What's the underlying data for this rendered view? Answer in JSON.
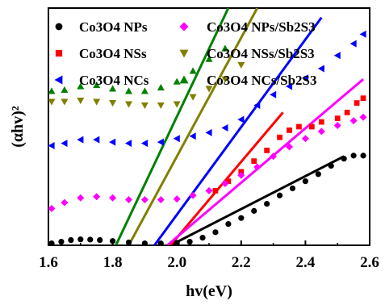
{
  "chart_data": {
    "type": "scatter",
    "xlabel": "hv(eV)",
    "ylabel": "(αhv)²",
    "xlim": [
      1.6,
      2.6
    ],
    "ylim": [
      0,
      10
    ],
    "xticks": [
      "1.6",
      "1.8",
      "2.0",
      "2.2",
      "2.4",
      "2.6"
    ],
    "legend_position": "top",
    "series": [
      {
        "name": "Co3O4 NPs",
        "color": "#000000",
        "marker": "circle",
        "points": [
          [
            1.61,
            0.08
          ],
          [
            1.64,
            0.15
          ],
          [
            1.67,
            0.22
          ],
          [
            1.7,
            0.25
          ],
          [
            1.73,
            0.24
          ],
          [
            1.76,
            0.22
          ],
          [
            1.8,
            0.18
          ],
          [
            1.85,
            0.12
          ],
          [
            1.9,
            0.08
          ],
          [
            1.95,
            0.08
          ],
          [
            2.0,
            0.1
          ],
          [
            2.04,
            0.15
          ],
          [
            2.08,
            0.32
          ],
          [
            2.12,
            0.55
          ],
          [
            2.16,
            0.9
          ],
          [
            2.2,
            1.15
          ],
          [
            2.24,
            1.45
          ],
          [
            2.28,
            1.75
          ],
          [
            2.32,
            2.1
          ],
          [
            2.36,
            2.4
          ],
          [
            2.4,
            2.7
          ],
          [
            2.44,
            3.0
          ],
          [
            2.48,
            3.35
          ],
          [
            2.52,
            3.65
          ],
          [
            2.55,
            3.78
          ],
          [
            2.58,
            3.78
          ]
        ],
        "fit": [
          [
            1.98,
            0
          ],
          [
            2.52,
            3.75
          ]
        ]
      },
      {
        "name": "Co3O4 NSs",
        "color": "#ff0000",
        "marker": "square",
        "points": [
          [
            2.12,
            2.3
          ],
          [
            2.16,
            2.7
          ],
          [
            2.2,
            3.1
          ],
          [
            2.24,
            3.55
          ],
          [
            2.28,
            4.0
          ],
          [
            2.32,
            4.55
          ],
          [
            2.35,
            4.85
          ],
          [
            2.38,
            5.0
          ],
          [
            2.42,
            5.0
          ],
          [
            2.45,
            5.2
          ],
          [
            2.5,
            5.35
          ],
          [
            2.53,
            5.6
          ],
          [
            2.56,
            6.0
          ],
          [
            2.58,
            6.2
          ]
        ],
        "fit": [
          [
            1.98,
            0
          ],
          [
            2.33,
            5.6
          ]
        ]
      },
      {
        "name": "Co3O4 NCs",
        "color": "#0000ff",
        "marker": "triangle-left",
        "points": [
          [
            1.61,
            4.2
          ],
          [
            1.65,
            4.3
          ],
          [
            1.7,
            4.45
          ],
          [
            1.75,
            4.45
          ],
          [
            1.8,
            4.35
          ],
          [
            1.85,
            4.3
          ],
          [
            1.9,
            4.3
          ],
          [
            1.95,
            4.35
          ],
          [
            2.0,
            4.5
          ],
          [
            2.05,
            4.6
          ],
          [
            2.1,
            4.75
          ],
          [
            2.15,
            4.95
          ],
          [
            2.2,
            5.3
          ],
          [
            2.25,
            5.9
          ],
          [
            2.3,
            6.35
          ],
          [
            2.35,
            6.7
          ],
          [
            2.4,
            7.05
          ],
          [
            2.45,
            7.45
          ],
          [
            2.5,
            8.0
          ],
          [
            2.55,
            8.5
          ],
          [
            2.58,
            8.9
          ]
        ],
        "fit": [
          [
            1.93,
            0
          ],
          [
            2.45,
            9.6
          ]
        ]
      },
      {
        "name": "Co3O4 NPs/Sb2S3",
        "color": "#ff00ff",
        "marker": "diamond",
        "points": [
          [
            1.61,
            1.55
          ],
          [
            1.65,
            1.8
          ],
          [
            1.7,
            2.0
          ],
          [
            1.75,
            2.05
          ],
          [
            1.8,
            2.0
          ],
          [
            1.85,
            1.92
          ],
          [
            1.9,
            1.92
          ],
          [
            1.95,
            1.92
          ],
          [
            2.0,
            1.95
          ],
          [
            2.05,
            2.1
          ],
          [
            2.1,
            2.3
          ],
          [
            2.15,
            2.6
          ],
          [
            2.2,
            2.95
          ],
          [
            2.25,
            3.3
          ],
          [
            2.3,
            3.75
          ],
          [
            2.35,
            4.15
          ],
          [
            2.4,
            4.5
          ],
          [
            2.45,
            4.8
          ],
          [
            2.5,
            5.05
          ],
          [
            2.55,
            5.25
          ],
          [
            2.58,
            5.4
          ]
        ],
        "fit": [
          [
            1.97,
            0
          ],
          [
            2.58,
            7.0
          ]
        ]
      },
      {
        "name": "Co3O4 NSs/Sb2S3",
        "color": "#808000",
        "marker": "triangle-down",
        "points": [
          [
            1.61,
            6.05
          ],
          [
            1.65,
            6.05
          ],
          [
            1.7,
            6.1
          ],
          [
            1.75,
            6.05
          ],
          [
            1.8,
            6.0
          ],
          [
            1.85,
            5.95
          ],
          [
            1.9,
            5.9
          ],
          [
            1.95,
            5.9
          ],
          [
            2.0,
            5.95
          ],
          [
            2.05,
            6.25
          ],
          [
            2.1,
            6.6
          ],
          [
            2.15,
            7.0
          ],
          [
            2.2,
            7.6
          ]
        ],
        "fit": [
          [
            1.85,
            0
          ],
          [
            2.25,
            10
          ]
        ]
      },
      {
        "name": "Co3O4 NCs/Sb2S3",
        "color": "#008000",
        "marker": "triangle-up",
        "points": [
          [
            1.61,
            6.5
          ],
          [
            1.65,
            6.55
          ],
          [
            1.7,
            6.7
          ],
          [
            1.75,
            6.75
          ],
          [
            1.8,
            6.6
          ],
          [
            1.85,
            6.5
          ],
          [
            1.9,
            6.5
          ],
          [
            1.95,
            6.65
          ],
          [
            2.0,
            6.9
          ],
          [
            2.05,
            7.35
          ],
          [
            2.1,
            7.85
          ],
          [
            2.15,
            8.3
          ]
        ],
        "fit": [
          [
            1.81,
            0
          ],
          [
            2.16,
            10
          ]
        ]
      }
    ]
  }
}
